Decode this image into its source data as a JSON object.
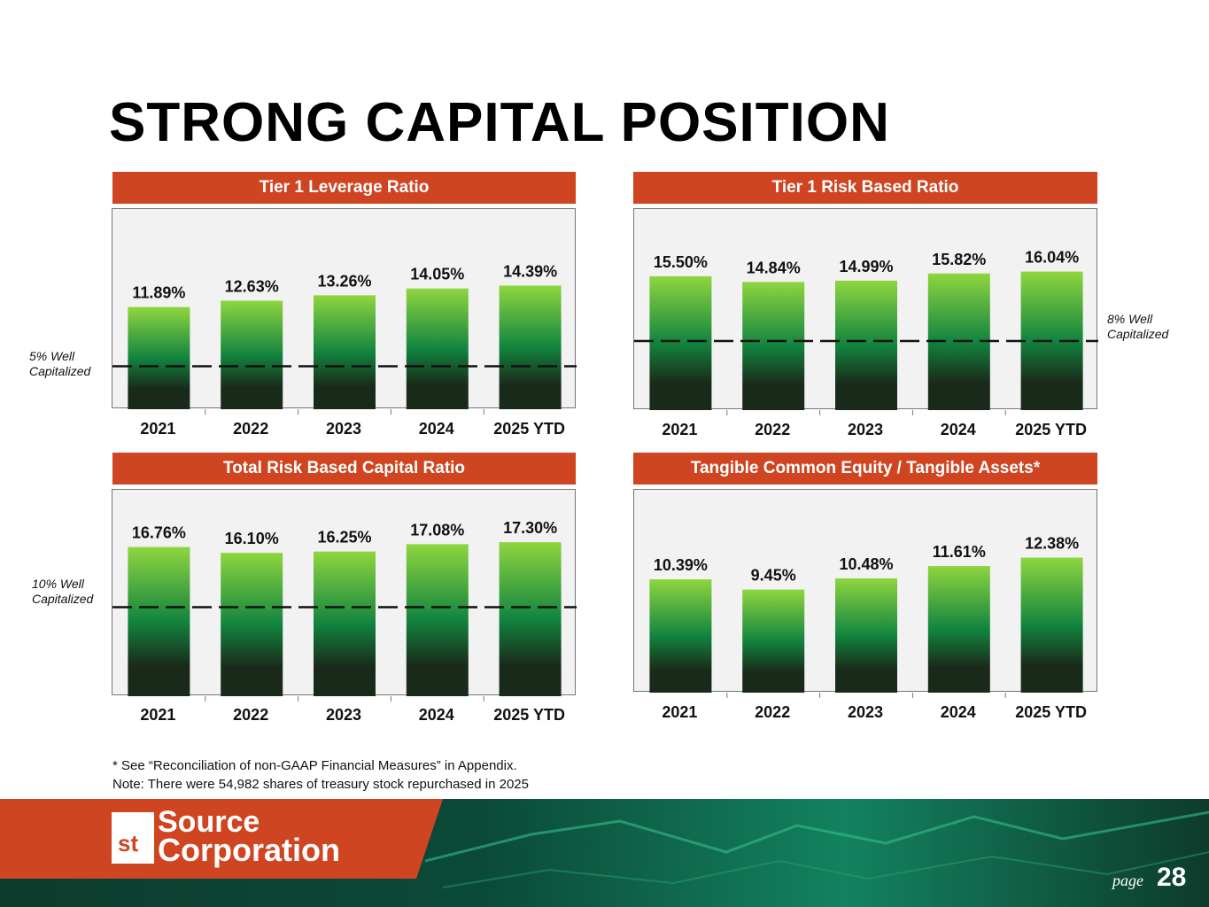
{
  "page": {
    "title": "STRONG CAPITAL POSITION",
    "footnote1": "* See “Reconciliation of non-GAAP Financial Measures” in Appendix.",
    "footnote2": "Note: There were 54,982 shares of treasury stock repurchased in 2025",
    "page_word": "page",
    "page_number": "28",
    "logo_top": "Source",
    "logo_bottom": "Corporation",
    "logo_mark": "st",
    "accent_color": "#cf4521",
    "bar_color_top": "#8fd63f",
    "bar_color_bottom": "#1a2a1a"
  },
  "chart_data": [
    {
      "type": "bar",
      "title": "Tier 1 Leverage Ratio",
      "categories": [
        "2021",
        "2022",
        "2023",
        "2024",
        "2025 YTD"
      ],
      "values": [
        11.89,
        12.63,
        13.26,
        14.05,
        14.39
      ],
      "labels": [
        "11.89%",
        "12.63%",
        "13.26%",
        "14.05%",
        "14.39%"
      ],
      "ylim": [
        0,
        20
      ],
      "reference_line": {
        "value": 5,
        "label_line1": "5% Well",
        "label_line2": "Capitalized"
      }
    },
    {
      "type": "bar",
      "title": "Tier 1 Risk Based Ratio",
      "categories": [
        "2021",
        "2022",
        "2023",
        "2024",
        "2025 YTD"
      ],
      "values": [
        15.5,
        14.84,
        14.99,
        15.82,
        16.04
      ],
      "labels": [
        "15.50%",
        "14.84%",
        "14.99%",
        "15.82%",
        "16.04%"
      ],
      "ylim": [
        0,
        20
      ],
      "reference_line": {
        "value": 8,
        "label_line1": "8% Well",
        "label_line2": "Capitalized"
      }
    },
    {
      "type": "bar",
      "title": "Total Risk Based Capital Ratio",
      "categories": [
        "2021",
        "2022",
        "2023",
        "2024",
        "2025 YTD"
      ],
      "values": [
        16.76,
        16.1,
        16.25,
        17.08,
        17.3
      ],
      "labels": [
        "16.76%",
        "16.10%",
        "16.25%",
        "17.08%",
        "17.30%"
      ],
      "ylim": [
        0,
        20
      ],
      "reference_line": {
        "value": 10,
        "label_line1": "10% Well",
        "label_line2": "Capitalized"
      }
    },
    {
      "type": "bar",
      "title": "Tangible Common Equity / Tangible Assets*",
      "categories": [
        "2021",
        "2022",
        "2023",
        "2024",
        "2025 YTD"
      ],
      "values": [
        10.39,
        9.45,
        10.48,
        11.61,
        12.38
      ],
      "labels": [
        "10.39%",
        "9.45%",
        "10.48%",
        "11.61%",
        "12.38%"
      ],
      "ylim": [
        0,
        16
      ]
    }
  ]
}
